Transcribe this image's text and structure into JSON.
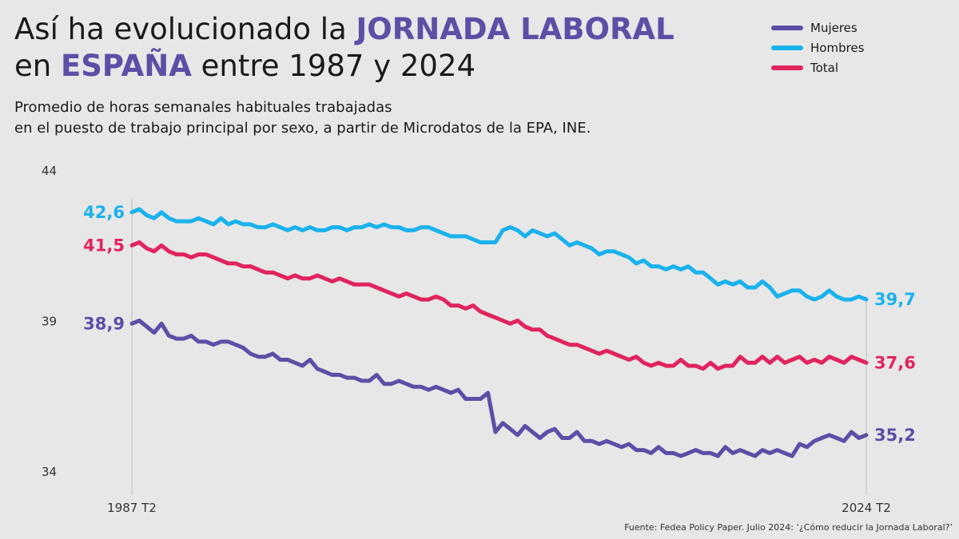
{
  "header": {
    "title_line1_prefix": "Así ha evolucionado la ",
    "title_line1_accent": "JORNADA LABORAL",
    "title_line2_prefix": "en ",
    "title_line2_accent": "ESPAÑA",
    "title_line2_suffix": " entre 1987 y 2024",
    "subtitle_line1": "Promedio de horas semanales habituales trabajadas",
    "subtitle_line2": "en el puesto de trabajo principal por sexo, a partir de Microdatos de la EPA, INE.",
    "accent_color": "#5b4fa6"
  },
  "legend": [
    {
      "label": "Mujeres",
      "color": "#5b4fa6"
    },
    {
      "label": "Hombres",
      "color": "#1ab2ec"
    },
    {
      "label": "Total",
      "color": "#e0245e"
    }
  ],
  "source": "Fuente: Fedea Policy Paper. Julio 2024: ‘¿Cómo reducir la Jornada Laboral?’",
  "chart_data": {
    "type": "line",
    "title": "Así ha evolucionado la JORNADA LABORAL en ESPAÑA entre 1987 y 2024",
    "subtitle": "Promedio de horas semanales habituales trabajadas en el puesto de trabajo principal por sexo, a partir de Microdatos de la EPA, INE.",
    "xlabel": "",
    "ylabel": "",
    "x_start": "1987 T2",
    "x_end": "2024 T2",
    "x_tick_labels": [
      "1987 T2",
      "2024 T2"
    ],
    "y_ticks": [
      34,
      39,
      44
    ],
    "ylim": [
      34,
      44
    ],
    "legend_position": "top-right",
    "grid": false,
    "series": [
      {
        "name": "Hombres",
        "color": "#1ab2ec",
        "start_label": "42,6",
        "end_label": "39,7",
        "values": [
          42.6,
          42.7,
          42.5,
          42.4,
          42.6,
          42.4,
          42.3,
          42.3,
          42.3,
          42.4,
          42.3,
          42.2,
          42.4,
          42.2,
          42.3,
          42.2,
          42.2,
          42.1,
          42.1,
          42.2,
          42.1,
          42.0,
          42.1,
          42.0,
          42.1,
          42.0,
          42.0,
          42.1,
          42.1,
          42.0,
          42.1,
          42.1,
          42.2,
          42.1,
          42.2,
          42.1,
          42.1,
          42.0,
          42.0,
          42.1,
          42.1,
          42.0,
          41.9,
          41.8,
          41.8,
          41.8,
          41.7,
          41.6,
          41.6,
          41.6,
          42.0,
          42.1,
          42.0,
          41.8,
          42.0,
          41.9,
          41.8,
          41.9,
          41.7,
          41.5,
          41.6,
          41.5,
          41.4,
          41.2,
          41.3,
          41.3,
          41.2,
          41.1,
          40.9,
          41.0,
          40.8,
          40.8,
          40.7,
          40.8,
          40.7,
          40.8,
          40.6,
          40.6,
          40.4,
          40.2,
          40.3,
          40.2,
          40.3,
          40.1,
          40.1,
          40.3,
          40.1,
          39.8,
          39.9,
          40.0,
          40.0,
          39.8,
          39.7,
          39.8,
          40.0,
          39.8,
          39.7,
          39.7,
          39.8,
          39.7
        ]
      },
      {
        "name": "Total",
        "color": "#e0245e",
        "start_label": "41,5",
        "end_label": "37,6",
        "values": [
          41.5,
          41.6,
          41.4,
          41.3,
          41.5,
          41.3,
          41.2,
          41.2,
          41.1,
          41.2,
          41.2,
          41.1,
          41.0,
          40.9,
          40.9,
          40.8,
          40.8,
          40.7,
          40.6,
          40.6,
          40.5,
          40.4,
          40.5,
          40.4,
          40.4,
          40.5,
          40.4,
          40.3,
          40.4,
          40.3,
          40.2,
          40.2,
          40.2,
          40.1,
          40.0,
          39.9,
          39.8,
          39.9,
          39.8,
          39.7,
          39.7,
          39.8,
          39.7,
          39.5,
          39.5,
          39.4,
          39.5,
          39.3,
          39.2,
          39.1,
          39.0,
          38.9,
          39.0,
          38.8,
          38.7,
          38.7,
          38.5,
          38.4,
          38.3,
          38.2,
          38.2,
          38.1,
          38.0,
          37.9,
          38.0,
          37.9,
          37.8,
          37.7,
          37.8,
          37.6,
          37.5,
          37.6,
          37.5,
          37.5,
          37.7,
          37.5,
          37.5,
          37.4,
          37.6,
          37.4,
          37.5,
          37.5,
          37.8,
          37.6,
          37.6,
          37.8,
          37.6,
          37.8,
          37.6,
          37.7,
          37.8,
          37.6,
          37.7,
          37.6,
          37.8,
          37.7,
          37.6,
          37.8,
          37.7,
          37.6
        ]
      },
      {
        "name": "Mujeres",
        "color": "#5b4fa6",
        "start_label": "38,9",
        "end_label": "35,2",
        "values": [
          38.9,
          39.0,
          38.8,
          38.6,
          38.9,
          38.5,
          38.4,
          38.4,
          38.5,
          38.3,
          38.3,
          38.2,
          38.3,
          38.3,
          38.2,
          38.1,
          37.9,
          37.8,
          37.8,
          37.9,
          37.7,
          37.7,
          37.6,
          37.5,
          37.7,
          37.4,
          37.3,
          37.2,
          37.2,
          37.1,
          37.1,
          37.0,
          37.0,
          37.2,
          36.9,
          36.9,
          37.0,
          36.9,
          36.8,
          36.8,
          36.7,
          36.8,
          36.7,
          36.6,
          36.7,
          36.4,
          36.4,
          36.4,
          36.6,
          35.3,
          35.6,
          35.4,
          35.2,
          35.5,
          35.3,
          35.1,
          35.3,
          35.4,
          35.1,
          35.1,
          35.3,
          35.0,
          35.0,
          34.9,
          35.0,
          34.9,
          34.8,
          34.9,
          34.7,
          34.7,
          34.6,
          34.8,
          34.6,
          34.6,
          34.5,
          34.6,
          34.7,
          34.6,
          34.6,
          34.5,
          34.8,
          34.6,
          34.7,
          34.6,
          34.5,
          34.7,
          34.6,
          34.7,
          34.6,
          34.5,
          34.9,
          34.8,
          35.0,
          35.1,
          35.2,
          35.1,
          35.0,
          35.3,
          35.1,
          35.2
        ]
      }
    ]
  }
}
